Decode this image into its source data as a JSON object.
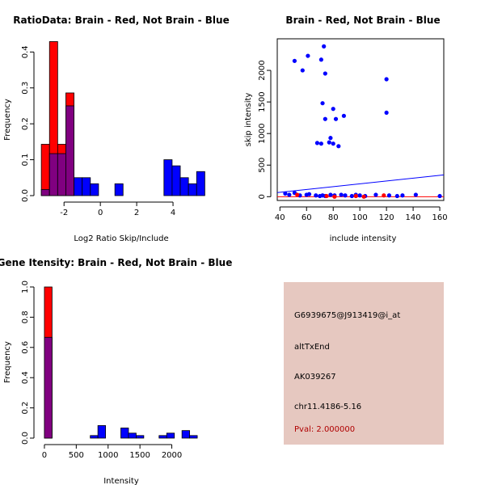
{
  "colors": {
    "red": "#ff0000",
    "blue": "#0000ff",
    "purple": "#800080",
    "info_bg": "#e6c8c0",
    "pval": "#b00000"
  },
  "chart_data": [
    {
      "id": "ratio_hist",
      "type": "bar",
      "title": "RatioData: Brain - Red, Not Brain - Blue",
      "xlabel": "Log2 Ratio Skip/Include",
      "ylabel": "Frequency",
      "xlim": [
        -3.3,
        5.6
      ],
      "ylim": [
        0,
        0.43
      ],
      "xticks": [
        -2,
        0,
        2,
        4
      ],
      "yticks": [
        0.0,
        0.1,
        0.2,
        0.3,
        0.4
      ],
      "bin_edges": [
        -3.25,
        -2.8,
        -2.35,
        -1.9,
        -1.45,
        -1.0,
        -0.55,
        -0.1,
        0.35,
        0.8,
        1.25,
        1.7,
        2.15,
        2.6,
        3.05,
        3.5,
        3.95,
        4.4,
        4.85,
        5.3,
        5.75
      ],
      "series": [
        {
          "name": "Brain",
          "color": "red",
          "values": [
            0.143,
            0.429,
            0.143,
            0.286,
            0,
            0,
            0,
            0,
            0,
            0,
            0,
            0,
            0,
            0,
            0,
            0,
            0,
            0,
            0,
            0
          ]
        },
        {
          "name": "Not Brain",
          "color": "blue",
          "values": [
            0.017,
            0.117,
            0.117,
            0.25,
            0.05,
            0.05,
            0.033,
            0,
            0,
            0.033,
            0,
            0,
            0,
            0,
            0,
            0.1,
            0.083,
            0.05,
            0.033,
            0.067
          ]
        }
      ]
    },
    {
      "id": "scatter",
      "type": "scatter",
      "title": "Brain - Red, Not Brain - Blue",
      "xlabel": "include intensity",
      "ylabel": "skip intensity",
      "xlim": [
        38,
        163
      ],
      "ylim": [
        -60,
        2500
      ],
      "xticks": [
        40,
        60,
        80,
        100,
        120,
        140,
        160
      ],
      "yticks": [
        0,
        500,
        1000,
        1500,
        2000
      ],
      "blue_points": [
        [
          51,
          2150
        ],
        [
          61,
          2230
        ],
        [
          57,
          2000
        ],
        [
          71,
          2170
        ],
        [
          73,
          2380
        ],
        [
          74,
          1950
        ],
        [
          72,
          1480
        ],
        [
          74,
          1230
        ],
        [
          80,
          1390
        ],
        [
          82,
          1230
        ],
        [
          88,
          1280
        ],
        [
          78,
          930
        ],
        [
          77,
          860
        ],
        [
          80,
          840
        ],
        [
          84,
          800
        ],
        [
          68,
          850
        ],
        [
          71,
          840
        ],
        [
          120,
          1860
        ],
        [
          120,
          1330
        ],
        [
          44,
          50
        ],
        [
          47,
          30
        ],
        [
          51,
          60
        ],
        [
          55,
          20
        ],
        [
          60,
          30
        ],
        [
          62,
          40
        ],
        [
          67,
          20
        ],
        [
          70,
          10
        ],
        [
          72,
          20
        ],
        [
          74,
          10
        ],
        [
          78,
          30
        ],
        [
          81,
          20
        ],
        [
          86,
          30
        ],
        [
          89,
          20
        ],
        [
          94,
          10
        ],
        [
          97,
          30
        ],
        [
          100,
          20
        ],
        [
          104,
          10
        ],
        [
          112,
          30
        ],
        [
          122,
          20
        ],
        [
          128,
          10
        ],
        [
          132,
          20
        ],
        [
          142,
          30
        ],
        [
          160,
          10
        ]
      ],
      "red_points": [
        [
          53,
          30
        ],
        [
          75,
          10
        ],
        [
          81,
          0
        ],
        [
          97,
          10
        ],
        [
          103,
          0
        ],
        [
          118,
          20
        ]
      ],
      "lines": [
        {
          "color": "blue",
          "from": [
            38,
            65
          ],
          "to": [
            163,
            345
          ]
        },
        {
          "color": "red",
          "from": [
            38,
            0
          ],
          "to": [
            163,
            0
          ]
        }
      ]
    },
    {
      "id": "intensity_hist",
      "type": "bar",
      "title": "Gene Itensity: Brain - Red, Not Brain - Blue",
      "xlabel": "Intensity",
      "ylabel": "Frequency",
      "xlim": [
        -50,
        2450
      ],
      "ylim": [
        0,
        1.0
      ],
      "xticks": [
        0,
        500,
        1000,
        1500,
        2000
      ],
      "yticks": [
        0.0,
        0.2,
        0.4,
        0.6,
        0.8,
        1.0
      ],
      "bin_edges": [
        0,
        120,
        240,
        360,
        480,
        600,
        720,
        840,
        960,
        1080,
        1200,
        1320,
        1440,
        1560,
        1680,
        1800,
        1920,
        2040,
        2160,
        2280,
        2400
      ],
      "series": [
        {
          "name": "Brain",
          "color": "red",
          "values": [
            1.0,
            0,
            0,
            0,
            0,
            0,
            0,
            0,
            0,
            0,
            0,
            0,
            0,
            0,
            0,
            0,
            0,
            0,
            0,
            0
          ]
        },
        {
          "name": "Not Brain",
          "color": "blue",
          "values": [
            0.667,
            0,
            0,
            0,
            0,
            0,
            0.017,
            0.083,
            0,
            0,
            0.067,
            0.033,
            0.017,
            0,
            0,
            0.017,
            0.033,
            0,
            0.05,
            0.017
          ]
        }
      ]
    }
  ],
  "info": {
    "probe": "G6939675@J913419@i_at",
    "event": "altTxEnd",
    "accession": "AK039267",
    "location": "chr11.4186-5.16",
    "pval": "Pval: 2.000000"
  }
}
